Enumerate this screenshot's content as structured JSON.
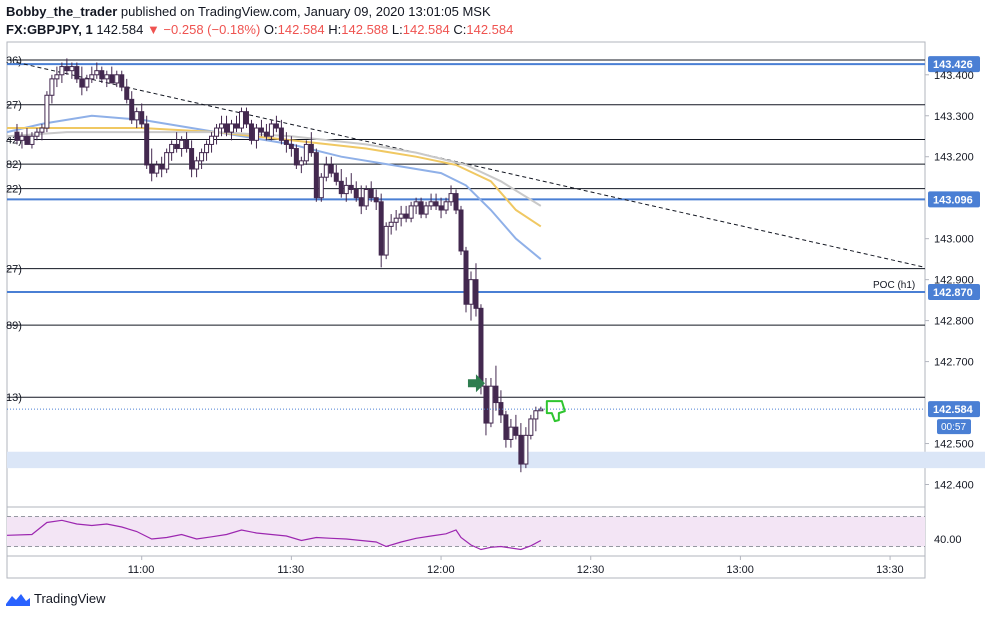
{
  "header": {
    "author": "Bobby_the_trader",
    "published": " published on TradingView.com, January 09, 2020 13:01:05 MSK",
    "symbol": "FX:GBPJPY, 1",
    "last": "142.584",
    "change": "▼ −0.258 (−0.18%)",
    "o_label": "O:",
    "o": "142.584",
    "h_label": "H:",
    "h": "142.588",
    "l_label": "L:",
    "l": "142.584",
    "c_label": "C:",
    "c": "142.584"
  },
  "footer": {
    "brand": "TradingView"
  },
  "colors": {
    "up": "#ffffff",
    "down": "#43284f",
    "hline": "#131722",
    "keyline": "#4a7fd4",
    "ma_blue": "#8fb0e8",
    "ma_gold": "#f0c862",
    "ma_grey": "#c9c9c9",
    "label_bg": "#4a7fd4",
    "rsi": "#9c27b0",
    "rsi_band": "#f3e5f5",
    "arrow": "#2e7d4f",
    "thumb": "#2fc52f",
    "zone": "#dbe6f7"
  },
  "chart_data": {
    "type": "candlestick",
    "symbol": "GBPJPY",
    "timeframe": "1",
    "ylim": [
      142.35,
      143.48
    ],
    "y_ticks": [
      142.4,
      142.5,
      142.6,
      142.7,
      142.8,
      142.9,
      143.0,
      143.1,
      143.2,
      143.3,
      143.4
    ],
    "y_tick_labels": [
      "142.400",
      "142.500",
      "142.600",
      "142.700",
      "142.800",
      "142.900",
      "143.000",
      "143.100",
      "143.200",
      "143.300",
      "143.400"
    ],
    "x_labels": [
      "11:00",
      "11:30",
      "12:00",
      "12:30",
      "13:00",
      "13:30"
    ],
    "x_label_minutes": [
      0,
      30,
      60,
      90,
      120,
      150
    ],
    "x_range_minutes": [
      -27,
      157
    ],
    "last_price": 142.584,
    "countdown": "00:57",
    "key_levels": [
      {
        "value": 143.426,
        "label": "143.426"
      },
      {
        "value": 143.096,
        "label": "143.096"
      },
      {
        "value": 142.87,
        "label": "142.870",
        "name": "POC (h1)"
      }
    ],
    "levels": [
      {
        "value": 143.436,
        "left_label": "36)"
      },
      {
        "value": 143.327,
        "left_label": "27)"
      },
      {
        "value": 143.242,
        "left_label": "42)"
      },
      {
        "value": 143.182,
        "left_label": "82)"
      },
      {
        "value": 143.122,
        "left_label": "22)"
      },
      {
        "value": 142.927,
        "left_label": "27)"
      },
      {
        "value": 142.789,
        "left_label": "89)"
      },
      {
        "value": 142.613,
        "left_label": "13)"
      }
    ],
    "zone": [
      142.44,
      142.48
    ],
    "trendline": {
      "from": [
        -25,
        143.43
      ],
      "to": [
        157,
        142.93
      ]
    },
    "candles": [
      [
        -25,
        143.26,
        143.28,
        143.23,
        143.24
      ],
      [
        -24,
        143.24,
        143.26,
        143.22,
        143.25
      ],
      [
        -23,
        143.25,
        143.27,
        143.23,
        143.23
      ],
      [
        -22,
        143.23,
        143.26,
        143.22,
        143.25
      ],
      [
        -21,
        143.25,
        143.27,
        143.24,
        143.26
      ],
      [
        -20,
        143.26,
        143.28,
        143.24,
        143.27
      ],
      [
        -19,
        143.27,
        143.36,
        143.26,
        143.35
      ],
      [
        -18,
        143.35,
        143.4,
        143.33,
        143.39
      ],
      [
        -17,
        143.39,
        143.42,
        143.37,
        143.4
      ],
      [
        -16,
        143.4,
        143.43,
        143.38,
        143.42
      ],
      [
        -15,
        143.42,
        143.44,
        143.4,
        143.41
      ],
      [
        -14,
        143.41,
        143.43,
        143.39,
        143.42
      ],
      [
        -13,
        143.42,
        143.43,
        143.38,
        143.39
      ],
      [
        -12,
        143.39,
        143.42,
        143.35,
        143.37
      ],
      [
        -11,
        143.37,
        143.4,
        143.36,
        143.39
      ],
      [
        -10,
        143.39,
        143.42,
        143.38,
        143.4
      ],
      [
        -9,
        143.4,
        143.43,
        143.39,
        143.41
      ],
      [
        -8,
        143.41,
        143.42,
        143.38,
        143.39
      ],
      [
        -7,
        143.39,
        143.41,
        143.37,
        143.4
      ],
      [
        -6,
        143.4,
        143.42,
        143.38,
        143.38
      ],
      [
        -5,
        143.38,
        143.41,
        143.37,
        143.4
      ],
      [
        -4,
        143.4,
        143.41,
        143.36,
        143.37
      ],
      [
        -3,
        143.37,
        143.39,
        143.33,
        143.34
      ],
      [
        -2,
        143.34,
        143.36,
        143.28,
        143.29
      ],
      [
        -1,
        143.29,
        143.32,
        143.27,
        143.31
      ],
      [
        0,
        143.31,
        143.33,
        143.27,
        143.28
      ],
      [
        1,
        143.28,
        143.3,
        143.17,
        143.18
      ],
      [
        2,
        143.18,
        143.22,
        143.14,
        143.16
      ],
      [
        3,
        143.16,
        143.19,
        143.15,
        143.18
      ],
      [
        4,
        143.18,
        143.2,
        143.15,
        143.17
      ],
      [
        5,
        143.17,
        143.22,
        143.16,
        143.21
      ],
      [
        6,
        143.21,
        143.24,
        143.19,
        143.23
      ],
      [
        7,
        143.23,
        143.26,
        143.21,
        143.22
      ],
      [
        8,
        143.22,
        143.25,
        143.2,
        143.24
      ],
      [
        9,
        143.24,
        143.26,
        143.21,
        143.22
      ],
      [
        10,
        143.22,
        143.24,
        143.15,
        143.17
      ],
      [
        11,
        143.17,
        143.2,
        143.15,
        143.19
      ],
      [
        12,
        143.19,
        143.22,
        143.17,
        143.21
      ],
      [
        13,
        143.21,
        143.24,
        143.19,
        143.23
      ],
      [
        14,
        143.23,
        143.26,
        143.21,
        143.25
      ],
      [
        15,
        143.25,
        143.28,
        143.23,
        143.27
      ],
      [
        16,
        143.27,
        143.3,
        143.25,
        143.28
      ],
      [
        17,
        143.28,
        143.3,
        143.25,
        143.26
      ],
      [
        18,
        143.26,
        143.29,
        143.24,
        143.28
      ],
      [
        19,
        143.28,
        143.3,
        143.26,
        143.27
      ],
      [
        20,
        143.27,
        143.32,
        143.26,
        143.31
      ],
      [
        21,
        143.31,
        143.32,
        143.27,
        143.28
      ],
      [
        22,
        143.28,
        143.29,
        143.23,
        143.24
      ],
      [
        23,
        143.24,
        143.28,
        143.22,
        143.27
      ],
      [
        24,
        143.27,
        143.29,
        143.25,
        143.26
      ],
      [
        25,
        143.26,
        143.28,
        143.24,
        143.25
      ],
      [
        26,
        143.25,
        143.29,
        143.24,
        143.28
      ],
      [
        27,
        143.28,
        143.3,
        143.26,
        143.27
      ],
      [
        28,
        143.27,
        143.29,
        143.23,
        143.24
      ],
      [
        29,
        143.24,
        143.26,
        143.21,
        143.23
      ],
      [
        30,
        143.23,
        143.25,
        143.2,
        143.22
      ],
      [
        31,
        143.22,
        143.23,
        143.17,
        143.18
      ],
      [
        32,
        143.18,
        143.2,
        143.16,
        143.19
      ],
      [
        33,
        143.19,
        143.24,
        143.18,
        143.23
      ],
      [
        34,
        143.23,
        143.26,
        143.2,
        143.21
      ],
      [
        35,
        143.21,
        143.22,
        143.09,
        143.1
      ],
      [
        36,
        143.1,
        143.16,
        143.09,
        143.15
      ],
      [
        37,
        143.15,
        143.2,
        143.14,
        143.18
      ],
      [
        38,
        143.18,
        143.2,
        143.15,
        143.16
      ],
      [
        39,
        143.16,
        143.18,
        143.13,
        143.14
      ],
      [
        40,
        143.14,
        143.17,
        143.1,
        143.11
      ],
      [
        41,
        143.11,
        143.15,
        143.09,
        143.13
      ],
      [
        42,
        143.13,
        143.16,
        143.11,
        143.12
      ],
      [
        43,
        143.12,
        143.14,
        143.09,
        143.1
      ],
      [
        44,
        143.1,
        143.13,
        143.06,
        143.08
      ],
      [
        45,
        143.08,
        143.13,
        143.07,
        143.12
      ],
      [
        46,
        143.12,
        143.14,
        143.09,
        143.1
      ],
      [
        47,
        143.1,
        143.12,
        143.07,
        143.09
      ],
      [
        48,
        143.09,
        143.11,
        142.93,
        142.96
      ],
      [
        49,
        142.96,
        143.04,
        142.95,
        143.03
      ],
      [
        50,
        143.03,
        143.06,
        143.01,
        143.04
      ],
      [
        51,
        143.04,
        143.07,
        143.02,
        143.05
      ],
      [
        52,
        143.05,
        143.08,
        143.03,
        143.06
      ],
      [
        53,
        143.06,
        143.08,
        143.04,
        143.05
      ],
      [
        54,
        143.05,
        143.09,
        143.04,
        143.08
      ],
      [
        55,
        143.08,
        143.1,
        143.06,
        143.09
      ],
      [
        56,
        143.09,
        143.1,
        143.05,
        143.06
      ],
      [
        57,
        143.06,
        143.09,
        143.05,
        143.08
      ],
      [
        58,
        143.08,
        143.11,
        143.07,
        143.09
      ],
      [
        59,
        143.09,
        143.11,
        143.07,
        143.08
      ],
      [
        60,
        143.08,
        143.1,
        143.05,
        143.07
      ],
      [
        61,
        143.07,
        143.1,
        143.06,
        143.09
      ],
      [
        62,
        143.09,
        143.13,
        143.08,
        143.11
      ],
      [
        63,
        143.11,
        143.12,
        143.06,
        143.07
      ],
      [
        64,
        143.07,
        143.08,
        142.96,
        142.97
      ],
      [
        65,
        142.97,
        142.98,
        142.82,
        142.84
      ],
      [
        66,
        142.84,
        142.92,
        142.8,
        142.9
      ],
      [
        67,
        142.9,
        142.94,
        142.81,
        142.83
      ],
      [
        68,
        142.83,
        142.84,
        142.62,
        142.64
      ],
      [
        69,
        142.64,
        142.66,
        142.52,
        142.55
      ],
      [
        70,
        142.55,
        142.66,
        142.54,
        142.64
      ],
      [
        71,
        142.64,
        142.69,
        142.58,
        142.6
      ],
      [
        72,
        142.6,
        142.63,
        142.55,
        142.57
      ],
      [
        73,
        142.57,
        142.58,
        142.49,
        142.51
      ],
      [
        74,
        142.51,
        142.56,
        142.49,
        142.54
      ],
      [
        75,
        142.54,
        142.57,
        142.51,
        142.52
      ],
      [
        76,
        142.52,
        142.55,
        142.43,
        142.45
      ],
      [
        77,
        142.45,
        142.54,
        142.44,
        142.52
      ],
      [
        78,
        142.52,
        142.57,
        142.51,
        142.56
      ],
      [
        79,
        142.56,
        142.59,
        142.53,
        142.58
      ],
      [
        80,
        142.58,
        142.59,
        142.58,
        142.584
      ]
    ],
    "ma": [
      {
        "name": "",
        "color": "ma_blue",
        "points": [
          [
            -27,
            143.26
          ],
          [
            -20,
            143.28
          ],
          [
            -10,
            143.3
          ],
          [
            0,
            143.29
          ],
          [
            10,
            143.27
          ],
          [
            20,
            143.25
          ],
          [
            30,
            143.23
          ],
          [
            40,
            143.2
          ],
          [
            50,
            143.18
          ],
          [
            60,
            143.16
          ],
          [
            65,
            143.13
          ],
          [
            70,
            143.07
          ],
          [
            75,
            143.0
          ],
          [
            80,
            142.95
          ]
        ]
      },
      {
        "name": "",
        "color": "ma_gold",
        "points": [
          [
            -27,
            143.27
          ],
          [
            -15,
            143.27
          ],
          [
            0,
            143.27
          ],
          [
            15,
            143.26
          ],
          [
            30,
            143.24
          ],
          [
            45,
            143.22
          ],
          [
            55,
            143.2
          ],
          [
            63,
            143.18
          ],
          [
            70,
            143.14
          ],
          [
            75,
            143.07
          ],
          [
            80,
            143.03
          ]
        ]
      },
      {
        "name": "",
        "color": "ma_grey",
        "points": [
          [
            -27,
            143.25
          ],
          [
            -15,
            143.26
          ],
          [
            0,
            143.26
          ],
          [
            15,
            143.26
          ],
          [
            30,
            143.25
          ],
          [
            45,
            143.23
          ],
          [
            55,
            143.21
          ],
          [
            65,
            143.18
          ],
          [
            72,
            143.14
          ],
          [
            80,
            143.08
          ]
        ]
      }
    ],
    "rsi": {
      "level_label": "40.00",
      "ylim": [
        20,
        80
      ],
      "bands": [
        30,
        70
      ],
      "points": [
        [
          -27,
          45
        ],
        [
          -22,
          46
        ],
        [
          -19,
          62
        ],
        [
          -16,
          65
        ],
        [
          -13,
          60
        ],
        [
          -10,
          58
        ],
        [
          -7,
          60
        ],
        [
          -4,
          56
        ],
        [
          -1,
          50
        ],
        [
          2,
          40
        ],
        [
          5,
          42
        ],
        [
          8,
          46
        ],
        [
          11,
          40
        ],
        [
          14,
          43
        ],
        [
          17,
          46
        ],
        [
          20,
          52
        ],
        [
          23,
          48
        ],
        [
          26,
          46
        ],
        [
          29,
          44
        ],
        [
          32,
          38
        ],
        [
          35,
          42
        ],
        [
          38,
          41
        ],
        [
          41,
          40
        ],
        [
          44,
          38
        ],
        [
          47,
          36
        ],
        [
          49,
          30
        ],
        [
          52,
          36
        ],
        [
          55,
          41
        ],
        [
          58,
          44
        ],
        [
          61,
          47
        ],
        [
          63,
          52
        ],
        [
          64,
          42
        ],
        [
          66,
          32
        ],
        [
          68,
          26
        ],
        [
          70,
          29
        ],
        [
          72,
          30
        ],
        [
          74,
          28
        ],
        [
          76,
          26
        ],
        [
          78,
          31
        ],
        [
          80,
          38
        ]
      ]
    }
  }
}
